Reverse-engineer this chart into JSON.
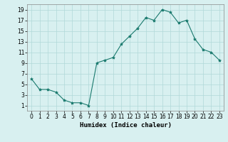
{
  "x": [
    0,
    1,
    2,
    3,
    4,
    5,
    6,
    7,
    8,
    9,
    10,
    11,
    12,
    13,
    14,
    15,
    16,
    17,
    18,
    19,
    20,
    21,
    22,
    23
  ],
  "y": [
    6,
    4,
    4,
    3.5,
    2,
    1.5,
    1.5,
    1,
    9,
    9.5,
    10,
    12.5,
    14,
    15.5,
    17.5,
    17,
    19,
    18.5,
    16.5,
    17,
    13.5,
    11.5,
    11,
    9.5
  ],
  "line_color": "#1a7a6e",
  "marker": "*",
  "marker_size": 3,
  "bg_color": "#d8f0f0",
  "grid_color": "#b0d8d8",
  "xlabel": "Humidex (Indice chaleur)",
  "xlim": [
    -0.5,
    23.5
  ],
  "ylim": [
    0,
    20
  ],
  "xticks": [
    0,
    1,
    2,
    3,
    4,
    5,
    6,
    7,
    8,
    9,
    10,
    11,
    12,
    13,
    14,
    15,
    16,
    17,
    18,
    19,
    20,
    21,
    22,
    23
  ],
  "yticks": [
    1,
    3,
    5,
    7,
    9,
    11,
    13,
    15,
    17,
    19
  ],
  "xlabel_fontsize": 6.5,
  "tick_fontsize": 5.5
}
